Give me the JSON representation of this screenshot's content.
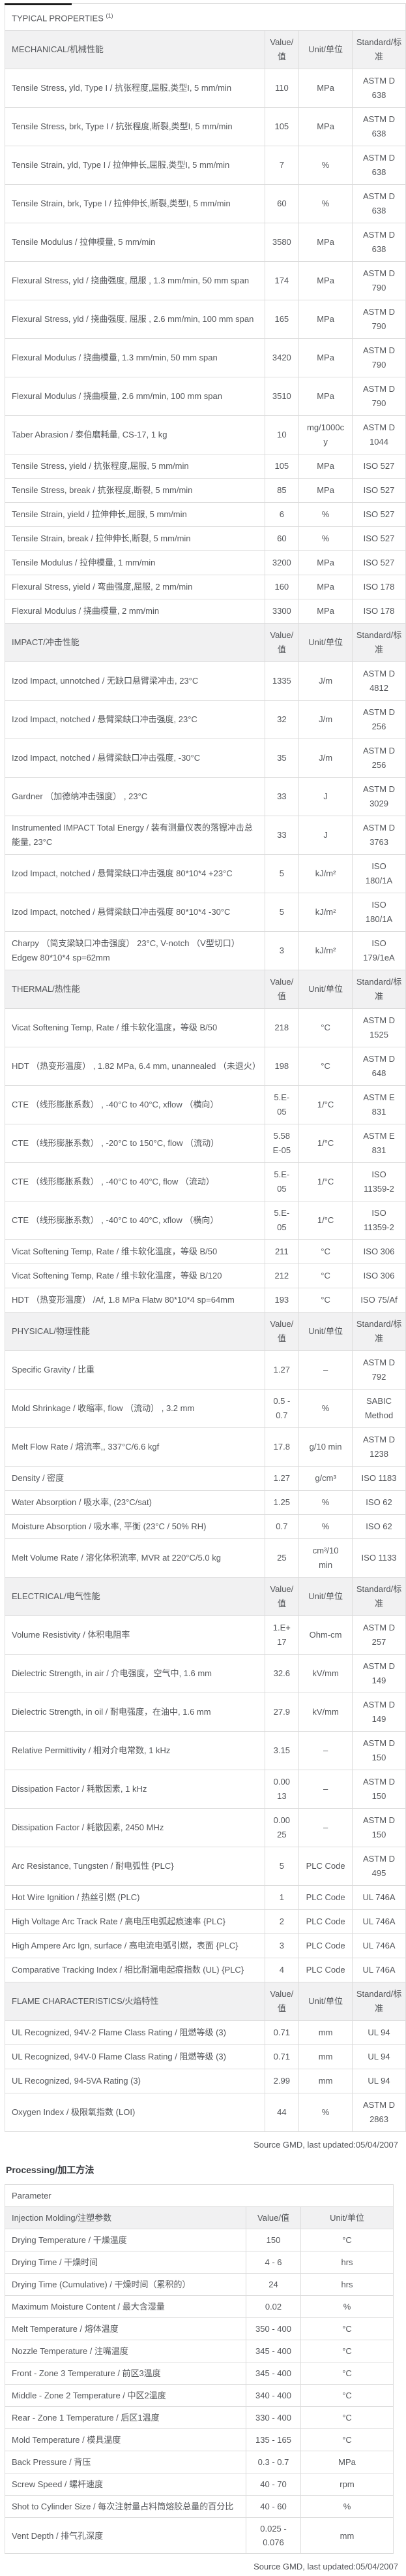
{
  "colors": {
    "text": "#54565A",
    "inner_border": "#DCDCDC",
    "section_header_bg": "#F1F1F2",
    "outer_border_dark": "#444444",
    "heading_text": "#3A3C40"
  },
  "typical": {
    "title": "TYPICAL PROPERTIES",
    "title_sup": "(1)"
  },
  "columns": {
    "value": "Value/值",
    "unit": "Unit/单位",
    "standard": "Standard/标准"
  },
  "sections": [
    {
      "name": "MECHANICAL/机械性能",
      "rows": [
        {
          "property": "Tensile Stress, yld, Type I / 抗张程度,屈服,类型I, 5 mm/min",
          "value": "110",
          "unit": "MPa",
          "standard": "ASTM D 638"
        },
        {
          "property": "Tensile Stress, brk, Type I / 抗张程度,断裂,类型I, 5 mm/min",
          "value": "105",
          "unit": "MPa",
          "standard": "ASTM D 638"
        },
        {
          "property": "Tensile Strain, yld, Type I / 拉伸伸长,屈服,类型I, 5 mm/min",
          "value": "7",
          "unit": "%",
          "standard": "ASTM D 638"
        },
        {
          "property": "Tensile Strain, brk, Type I / 拉伸伸长,断裂,类型I, 5 mm/min",
          "value": "60",
          "unit": "%",
          "standard": "ASTM D 638"
        },
        {
          "property": "Tensile Modulus / 拉伸模量, 5 mm/min",
          "value": "3580",
          "unit": "MPa",
          "standard": "ASTM D 638"
        },
        {
          "property": "Flexural Stress, yld / 挠曲强度, 屈服 , 1.3 mm/min, 50 mm span",
          "value": "174",
          "unit": "MPa",
          "standard": "ASTM D 790"
        },
        {
          "property": "Flexural Stress, yld / 挠曲强度, 屈服 , 2.6 mm/min, 100 mm span",
          "value": "165",
          "unit": "MPa",
          "standard": "ASTM D 790"
        },
        {
          "property": "Flexural Modulus / 挠曲模量, 1.3 mm/min, 50 mm span",
          "value": "3420",
          "unit": "MPa",
          "standard": "ASTM D 790"
        },
        {
          "property": "Flexural Modulus / 挠曲模量, 2.6 mm/min, 100 mm span",
          "value": "3510",
          "unit": "MPa",
          "standard": "ASTM D 790"
        },
        {
          "property": "Taber Abrasion / 泰伯磨耗量, CS-17, 1 kg",
          "value": "10",
          "unit": "mg/1000cy",
          "standard": "ASTM D 1044"
        },
        {
          "property": "Tensile Stress, yield / 抗张程度,屈服, 5 mm/min",
          "value": "105",
          "unit": "MPa",
          "standard": "ISO 527"
        },
        {
          "property": "Tensile Stress, break / 抗张程度,断裂, 5 mm/min",
          "value": "85",
          "unit": "MPa",
          "standard": "ISO 527"
        },
        {
          "property": "Tensile Strain, yield / 拉伸伸长,屈服, 5 mm/min",
          "value": "6",
          "unit": "%",
          "standard": "ISO 527"
        },
        {
          "property": "Tensile Strain, break / 拉伸伸长,断裂, 5 mm/min",
          "value": "60",
          "unit": "%",
          "standard": "ISO 527"
        },
        {
          "property": "Tensile Modulus / 拉伸模量, 1 mm/min",
          "value": "3200",
          "unit": "MPa",
          "standard": "ISO 527"
        },
        {
          "property": "Flexural Stress, yield / 弯曲强度,屈服, 2 mm/min",
          "value": "160",
          "unit": "MPa",
          "standard": "ISO 178"
        },
        {
          "property": "Flexural Modulus / 挠曲模量, 2 mm/min",
          "value": "3300",
          "unit": "MPa",
          "standard": "ISO 178"
        }
      ]
    },
    {
      "name": "IMPACT/冲击性能",
      "rows": [
        {
          "property": "Izod Impact, unnotched / 无缺口悬臂梁冲击, 23°C",
          "value": "1335",
          "unit": "J/m",
          "standard": "ASTM D 4812"
        },
        {
          "property": "Izod Impact, notched / 悬臂梁缺口冲击强度, 23°C",
          "value": "32",
          "unit": "J/m",
          "standard": "ASTM D 256"
        },
        {
          "property": "Izod Impact, notched / 悬臂梁缺口冲击强度, -30°C",
          "value": "35",
          "unit": "J/m",
          "standard": "ASTM D 256"
        },
        {
          "property": "Gardner （加德纳冲击强度） , 23°C",
          "value": "33",
          "unit": "J",
          "standard": "ASTM D 3029"
        },
        {
          "property": "Instrumented IMPACT Total Energy / 装有测量仪表的落镖冲击总能量, 23°C",
          "value": "33",
          "unit": "J",
          "standard": "ASTM D 3763"
        },
        {
          "property": "Izod Impact, notched / 悬臂梁缺口冲击强度 80*10*4 +23°C",
          "value": "5",
          "unit": "kJ/m²",
          "standard": "ISO 180/1A"
        },
        {
          "property": "Izod Impact, notched / 悬臂梁缺口冲击强度 80*10*4 -30°C",
          "value": "5",
          "unit": "kJ/m²",
          "standard": "ISO 180/1A"
        },
        {
          "property": "Charpy （简支梁缺口冲击强度） 23°C, V-notch （V型切口） Edgew 80*10*4 sp=62mm",
          "value": "3",
          "unit": "kJ/m²",
          "standard": "ISO 179/1eA"
        }
      ]
    },
    {
      "name": "THERMAL/热性能",
      "rows": [
        {
          "property": "Vicat Softening Temp, Rate / 维卡软化温度，等级 B/50",
          "value": "218",
          "unit": "°C",
          "standard": "ASTM D 1525"
        },
        {
          "property": "HDT （热变形温度） , 1.82 MPa, 6.4 mm, unannealed （未退火）",
          "value": "198",
          "unit": "°C",
          "standard": "ASTM D 648"
        },
        {
          "property": "CTE （线形膨胀系数） , -40°C to 40°C, xflow （横向）",
          "value": "5.E-05",
          "unit": "1/°C",
          "standard": "ASTM E 831"
        },
        {
          "property": "CTE （线形膨胀系数） , -20°C to 150°C, flow （流动）",
          "value": "5.58E-05",
          "unit": "1/°C",
          "standard": "ASTM E 831"
        },
        {
          "property": "CTE （线形膨胀系数） , -40°C to 40°C, flow （流动）",
          "value": "5.E-05",
          "unit": "1/°C",
          "standard": "ISO 11359-2"
        },
        {
          "property": "CTE （线形膨胀系数） , -40°C to 40°C, xflow （横向）",
          "value": "5.E-05",
          "unit": "1/°C",
          "standard": "ISO 11359-2"
        },
        {
          "property": "Vicat Softening Temp, Rate / 维卡软化温度，等级 B/50",
          "value": "211",
          "unit": "°C",
          "standard": "ISO 306"
        },
        {
          "property": "Vicat Softening Temp, Rate / 维卡软化温度，等级 B/120",
          "value": "212",
          "unit": "°C",
          "standard": "ISO 306"
        },
        {
          "property": "HDT （热变形温度） /Af, 1.8 MPa Flatw 80*10*4 sp=64mm",
          "value": "193",
          "unit": "°C",
          "standard": "ISO 75/Af"
        }
      ]
    },
    {
      "name": "PHYSICAL/物理性能",
      "rows": [
        {
          "property": "Specific Gravity / 比重",
          "value": "1.27",
          "unit": "–",
          "standard": "ASTM D 792"
        },
        {
          "property": "Mold Shrinkage / 收缩率, flow （流动） , 3.2 mm",
          "value": "0.5 - 0.7",
          "unit": "%",
          "standard": "SABIC Method"
        },
        {
          "property": "Melt Flow Rate / 熔流率,, 337°C/6.6 kgf",
          "value": "17.8",
          "unit": "g/10 min",
          "standard": "ASTM D 1238"
        },
        {
          "property": "Density / 密度",
          "value": "1.27",
          "unit": "g/cm³",
          "standard": "ISO 1183"
        },
        {
          "property": "Water Absorption / 吸水率, (23°C/sat)",
          "value": "1.25",
          "unit": "%",
          "standard": "ISO 62"
        },
        {
          "property": "Moisture Absorption / 吸水率, 平衡 (23°C / 50% RH)",
          "value": "0.7",
          "unit": "%",
          "standard": "ISO 62"
        },
        {
          "property": "Melt Volume Rate / 溶化体积流率, MVR at 220°C/5.0 kg",
          "value": "25",
          "unit": "cm³/10 min",
          "standard": "ISO 1133"
        }
      ]
    },
    {
      "name": "ELECTRICAL/电气性能",
      "rows": [
        {
          "property": "Volume Resistivity / 体积电阻率",
          "value": "1.E+17",
          "unit": "Ohm-cm",
          "standard": "ASTM D 257"
        },
        {
          "property": "Dielectric Strength, in air / 介电强度，空气中, 1.6 mm",
          "value": "32.6",
          "unit": "kV/mm",
          "standard": "ASTM D 149"
        },
        {
          "property": "Dielectric Strength, in oil / 耐电强度，在油中, 1.6 mm",
          "value": "27.9",
          "unit": "kV/mm",
          "standard": "ASTM D 149"
        },
        {
          "property": "Relative Permittivity / 相对介电常数, 1 kHz",
          "value": "3.15",
          "unit": "–",
          "standard": "ASTM D 150"
        },
        {
          "property": "Dissipation Factor / 耗散因素, 1 kHz",
          "value": "0.0013",
          "unit": "–",
          "standard": "ASTM D 150"
        },
        {
          "property": "Dissipation Factor / 耗散因素, 2450 MHz",
          "value": "0.0025",
          "unit": "–",
          "standard": "ASTM D 150"
        },
        {
          "property": "Arc Resistance, Tungsten / 耐电弧性 {PLC}",
          "value": "5",
          "unit": "PLC Code",
          "standard": "ASTM D 495"
        },
        {
          "property": "Hot Wire Ignition / 热丝引燃 (PLC)",
          "value": "1",
          "unit": "PLC Code",
          "standard": "UL 746A"
        },
        {
          "property": "High Voltage Arc Track Rate / 高电压电弧起痕速率 {PLC}",
          "value": "2",
          "unit": "PLC Code",
          "standard": "UL 746A"
        },
        {
          "property": "High Ampere Arc Ign, surface / 高电流电弧引燃，表面 {PLC}",
          "value": "3",
          "unit": "PLC Code",
          "standard": "UL 746A"
        },
        {
          "property": "Comparative Tracking Index / 相比耐漏电起痕指数 (UL) {PLC}",
          "value": "4",
          "unit": "PLC Code",
          "standard": "UL 746A"
        }
      ]
    },
    {
      "name": "FLAME CHARACTERISTICS/火焰特性",
      "rows": [
        {
          "property": "UL Recognized, 94V-2 Flame Class Rating / 阻燃等级 (3)",
          "value": "0.71",
          "unit": "mm",
          "standard": "UL 94"
        },
        {
          "property": "UL Recognized, 94V-0 Flame Class Rating / 阻燃等级 (3)",
          "value": "0.71",
          "unit": "mm",
          "standard": "UL 94"
        },
        {
          "property": "UL Recognized, 94-5VA Rating (3)",
          "value": "2.99",
          "unit": "mm",
          "standard": "UL 94"
        },
        {
          "property": "Oxygen Index / 极限氧指数 (LOI)",
          "value": "44",
          "unit": "%",
          "standard": "ASTM D 2863"
        }
      ]
    }
  ],
  "source_note": "Source GMD, last updated:05/04/2007",
  "processing": {
    "heading": "Processing/加工方法",
    "parameter_header": "Parameter",
    "subheader": "Injection Molding/注塑参数",
    "columns": {
      "value": "Value/值",
      "unit": "Unit/单位"
    },
    "rows": [
      {
        "property": "Drying Temperature / 干燥温度",
        "value": "150",
        "unit": "°C"
      },
      {
        "property": "Drying Time / 干燥时间",
        "value": "4 - 6",
        "unit": "hrs"
      },
      {
        "property": "Drying Time (Cumulative) / 干燥时间（累积的）",
        "value": "24",
        "unit": "hrs"
      },
      {
        "property": "Maximum Moisture Content / 最大含湿量",
        "value": "0.02",
        "unit": "%"
      },
      {
        "property": "Melt Temperature / 熔体温度",
        "value": "350 - 400",
        "unit": "°C"
      },
      {
        "property": "Nozzle Temperature / 注嘴温度",
        "value": "345 - 400",
        "unit": "°C"
      },
      {
        "property": "Front - Zone 3 Temperature / 前区3温度",
        "value": "345 - 400",
        "unit": "°C"
      },
      {
        "property": "Middle - Zone 2 Temperature / 中区2温度",
        "value": "340 - 400",
        "unit": "°C"
      },
      {
        "property": "Rear - Zone 1 Temperature / 后区1温度",
        "value": "330 - 400",
        "unit": "°C"
      },
      {
        "property": "Mold Temperature / 模具温度",
        "value": "135 - 165",
        "unit": "°C"
      },
      {
        "property": "Back Pressure / 背压",
        "value": "0.3 - 0.7",
        "unit": "MPa"
      },
      {
        "property": "Screw Speed / 螺杆速度",
        "value": "40 - 70",
        "unit": "rpm"
      },
      {
        "property": "Shot to Cylinder Size / 每次注射量占料筒熔胶总量的百分比",
        "value": "40 - 60",
        "unit": "%"
      },
      {
        "property": "Vent Depth / 排气孔深度",
        "value": "0.025 - 0.076",
        "unit": "mm"
      }
    ]
  }
}
